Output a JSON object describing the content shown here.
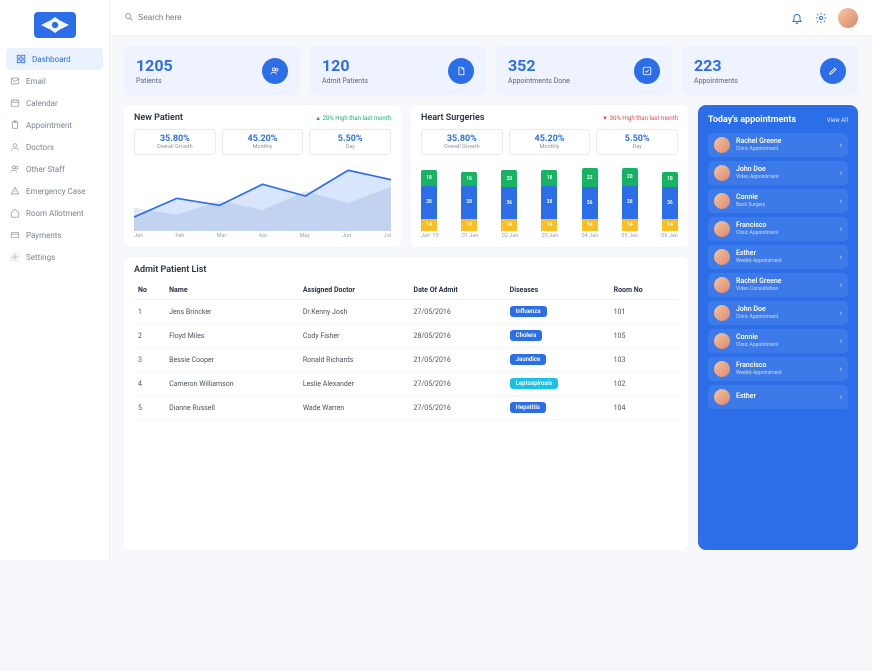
{
  "search": {
    "placeholder": "Search here"
  },
  "sidebar": {
    "items": [
      {
        "label": "Dashboard",
        "icon": "grid",
        "active": true
      },
      {
        "label": "Email",
        "icon": "mail"
      },
      {
        "label": "Calendar",
        "icon": "calendar"
      },
      {
        "label": "Appointment",
        "icon": "clipboard"
      },
      {
        "label": "Doctors",
        "icon": "user"
      },
      {
        "label": "Other Staff",
        "icon": "users"
      },
      {
        "label": "Emergency Case",
        "icon": "alert"
      },
      {
        "label": "Room Allotment",
        "icon": "home"
      },
      {
        "label": "Payments",
        "icon": "card"
      },
      {
        "label": "Settings",
        "icon": "gear"
      }
    ]
  },
  "stats": [
    {
      "value": "1205",
      "label": "Patients",
      "icon": "users"
    },
    {
      "value": "120",
      "label": "Admit Patients",
      "icon": "file"
    },
    {
      "value": "352",
      "label": "Appointments Done",
      "icon": "check"
    },
    {
      "value": "223",
      "label": "Appointments",
      "icon": "pen"
    }
  ],
  "newPatient": {
    "title": "New Patient",
    "trend": {
      "text": "▲ 20% High than last month",
      "dir": "up"
    },
    "pills": [
      {
        "value": "35.80%",
        "label": "Overall Growth"
      },
      {
        "value": "45.20%",
        "label": "Monthly"
      },
      {
        "value": "5.50%",
        "label": "Day"
      }
    ],
    "x": [
      "Jan",
      "Feb",
      "Mar",
      "Apr",
      "May",
      "Jun",
      "Jul"
    ],
    "seriesA": [
      12,
      28,
      22,
      40,
      30,
      52,
      44
    ],
    "seriesB": [
      20,
      14,
      26,
      18,
      34,
      24,
      38
    ],
    "colorA": "#2c6ee8",
    "colorB": "#c8d4ea",
    "ylim": [
      0,
      60
    ]
  },
  "heart": {
    "title": "Heart Surgeries",
    "trend": {
      "text": "▼ 30% High than last month",
      "dir": "down"
    },
    "pills": [
      {
        "value": "35.80%",
        "label": "Overall Growth"
      },
      {
        "value": "45.20%",
        "label": "Monthly"
      },
      {
        "value": "5.50%",
        "label": "Day"
      }
    ],
    "x": [
      "Jan '19",
      "01 Jan",
      "02 Jan",
      "03 Jan",
      "04 Jan",
      "05 Jan",
      "06 Jan"
    ],
    "segColors": [
      "#fbbf24",
      "#2c6ee8",
      "#16b364"
    ],
    "stacks": [
      [
        14,
        38,
        18
      ],
      [
        14,
        38,
        16
      ],
      [
        14,
        36,
        20
      ],
      [
        14,
        38,
        18
      ],
      [
        14,
        36,
        22
      ],
      [
        14,
        38,
        20
      ],
      [
        14,
        36,
        18
      ]
    ],
    "segLabels": [
      [
        "14",
        "38",
        "18"
      ],
      [
        "14",
        "38",
        "16"
      ],
      [
        "14",
        "36",
        "20"
      ],
      [
        "14",
        "38",
        "18"
      ],
      [
        "14",
        "36",
        "22"
      ],
      [
        "14",
        "38",
        "20"
      ],
      [
        "14",
        "36",
        "18"
      ]
    ],
    "ylim": [
      0,
      80
    ]
  },
  "appointments": {
    "title": "Today's appointments",
    "viewAll": "View All",
    "items": [
      {
        "name": "Rachel Greene",
        "sub": "Clinic Appointment"
      },
      {
        "name": "John Doe",
        "sub": "Video Appointment"
      },
      {
        "name": "Connie",
        "sub": "Back Surgery"
      },
      {
        "name": "Francisco",
        "sub": "Clinic Appointment"
      },
      {
        "name": "Esther",
        "sub": "Weekly Appointment"
      },
      {
        "name": "Rachel Greene",
        "sub": "Video Consultation"
      },
      {
        "name": "John Doe",
        "sub": "Clinic Appointment"
      },
      {
        "name": "Connie",
        "sub": "Clinic Appointment"
      },
      {
        "name": "Francisco",
        "sub": "Weekly Appointment"
      },
      {
        "name": "Esther",
        "sub": ""
      }
    ]
  },
  "patientList": {
    "title": "Admit Patient List",
    "columns": [
      "No",
      "Name",
      "Assigned Doctor",
      "Date Of Admit",
      "Diseases",
      "Room No"
    ],
    "rows": [
      {
        "no": "1",
        "name": "Jens Brincker",
        "doctor": "Dr.Kenny Josh",
        "date": "27/05/2016",
        "disease": "Influenza",
        "badge": "blue",
        "room": "101"
      },
      {
        "no": "2",
        "name": "Floyd Miles",
        "doctor": "Cody Fisher",
        "date": "28/05/2016",
        "disease": "Cholera",
        "badge": "blue",
        "room": "105"
      },
      {
        "no": "3",
        "name": "Bessie Cooper",
        "doctor": "Ronald Richards",
        "date": "21/05/2016",
        "disease": "Jaundice",
        "badge": "blue",
        "room": "103"
      },
      {
        "no": "4",
        "name": "Cameron Williamson",
        "doctor": "Leslie Alexander",
        "date": "27/05/2016",
        "disease": "Leptospirosis",
        "badge": "teal",
        "room": "102"
      },
      {
        "no": "5",
        "name": "Dianne Russell",
        "doctor": "Wade Warren",
        "date": "27/05/2016",
        "disease": "Hepatitis",
        "badge": "blue",
        "room": "104"
      }
    ]
  },
  "colors": {
    "primary": "#2c6ee8",
    "cardBg": "#eef3ff",
    "green": "#16b364",
    "amber": "#fbbf24",
    "teal": "#17c1e8"
  }
}
